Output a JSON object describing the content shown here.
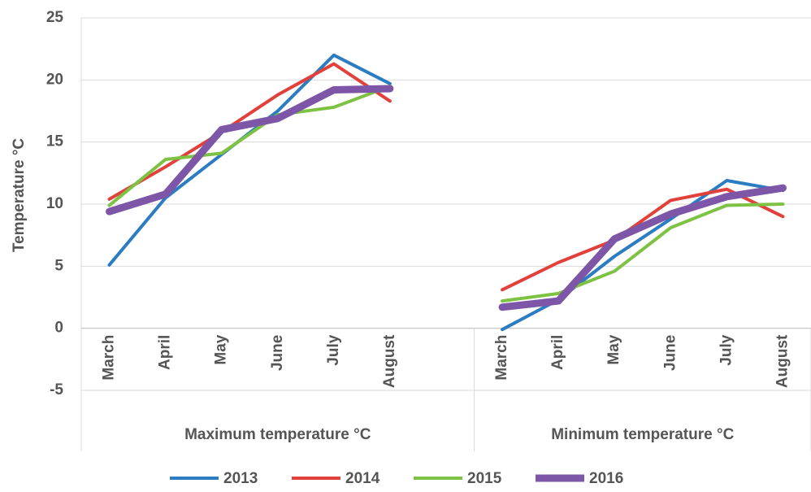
{
  "chart_data": {
    "type": "line",
    "y_label": "Temperature °C",
    "categories": [
      "March",
      "April",
      "May",
      "June",
      "July",
      "August",
      null,
      "March",
      "April",
      "May",
      "June",
      "July",
      "August"
    ],
    "category_groups": [
      "Maximum temperature °C",
      "Minimum temperature °C"
    ],
    "series": [
      {
        "name": "2013",
        "color": "#2b7cc1",
        "width": 4,
        "values": [
          5.1,
          10.5,
          14,
          17.5,
          22,
          19.7,
          null,
          -0.1,
          2.3,
          5.8,
          8.8,
          11.9,
          11.1
        ]
      },
      {
        "name": "2014",
        "color": "#e2403b",
        "width": 4,
        "values": [
          10.4,
          13,
          15.8,
          18.8,
          21.3,
          18.3,
          null,
          3.1,
          5.3,
          7.1,
          10.3,
          11.2,
          9.0
        ]
      },
      {
        "name": "2015",
        "color": "#7dc243",
        "width": 4,
        "values": [
          9.9,
          13.6,
          14.1,
          17.2,
          17.8,
          19.5,
          null,
          2.2,
          2.8,
          4.6,
          8.1,
          9.9,
          10.0
        ]
      },
      {
        "name": "2016",
        "color": "#7e56a7",
        "width": 9,
        "values": [
          9.4,
          10.8,
          16,
          16.9,
          19.2,
          19.3,
          null,
          1.7,
          2.2,
          7.2,
          9.2,
          10.6,
          11.3
        ]
      }
    ],
    "ylim": [
      -5,
      25
    ],
    "yticks": [
      -5,
      0,
      5,
      10,
      15,
      20,
      25
    ],
    "grid": true,
    "legend": "bottom"
  }
}
